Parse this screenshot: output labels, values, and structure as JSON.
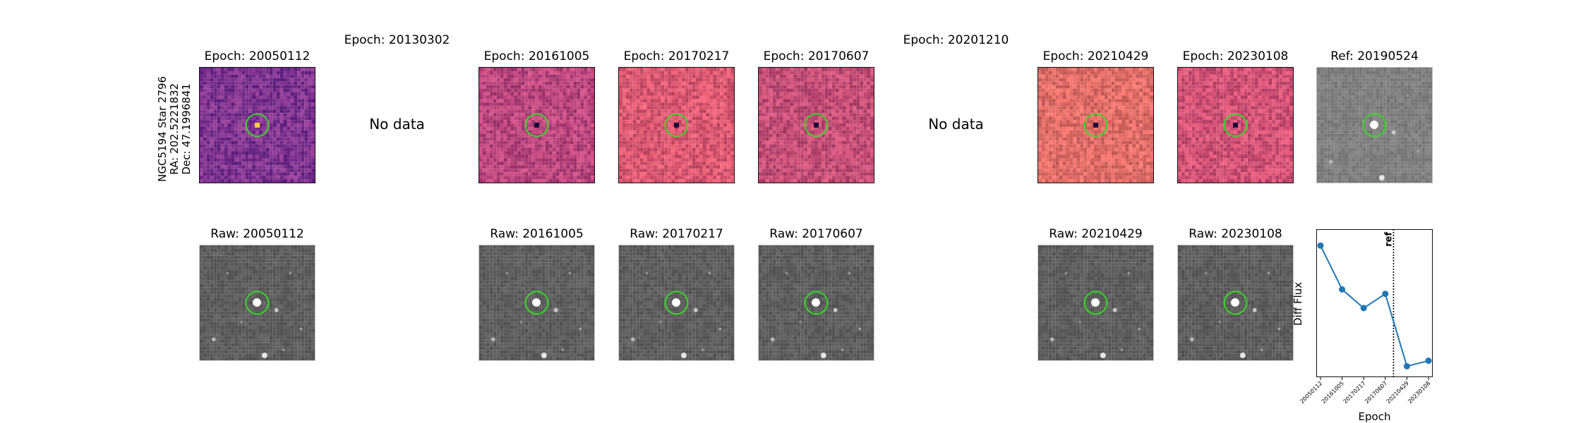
{
  "star": {
    "name": "NGC5194 Star 2796",
    "ra": "RA: 202.5221832",
    "dec": "Dec: 47.1996841"
  },
  "top_row": [
    {
      "title": "Epoch: 20050112",
      "kind": "diff",
      "bg": "#7a2f8c"
    },
    {
      "title": "Epoch: 20130302",
      "kind": "nodata",
      "message": "No data"
    },
    {
      "title": "Epoch: 20161005",
      "kind": "diff",
      "bg": "#b8427a"
    },
    {
      "title": "Epoch: 20170217",
      "kind": "diff",
      "bg": "#d9556e"
    },
    {
      "title": "Epoch: 20170607",
      "kind": "diff",
      "bg": "#c24a73"
    },
    {
      "title": "Epoch: 20201210",
      "kind": "nodata",
      "message": "No data"
    },
    {
      "title": "Epoch: 20210429",
      "kind": "diff",
      "bg": "#e06a64"
    },
    {
      "title": "Epoch: 20230108",
      "kind": "diff",
      "bg": "#cf4e72"
    },
    {
      "title": "Ref: 20190524",
      "kind": "ref",
      "bg": "#7d7d7d"
    }
  ],
  "bottom_row": [
    {
      "title": "Raw: 20050112"
    },
    {
      "title": "Raw: 20161005"
    },
    {
      "title": "Raw: 20170217"
    },
    {
      "title": "Raw: 20170607"
    },
    {
      "title": "Raw: 20210429"
    },
    {
      "title": "Raw: 20230108"
    }
  ],
  "colors": {
    "aperture": "#33dd22",
    "line": "#1f77b4",
    "raw_bg": "#5a5a5a"
  },
  "chart_data": {
    "type": "line",
    "ylabel": "Diff Flux",
    "xlabel": "Epoch",
    "ref_label": "ref",
    "ref_position_between": [
      "20170607",
      "20210429"
    ],
    "categories": [
      "20050112",
      "20161005",
      "20170217",
      "20170607",
      "20210429",
      "20230108"
    ],
    "values": [
      1.0,
      0.6,
      0.43,
      0.56,
      -0.1,
      -0.05
    ],
    "ylim": [
      -0.2,
      1.15
    ],
    "grid": false
  }
}
